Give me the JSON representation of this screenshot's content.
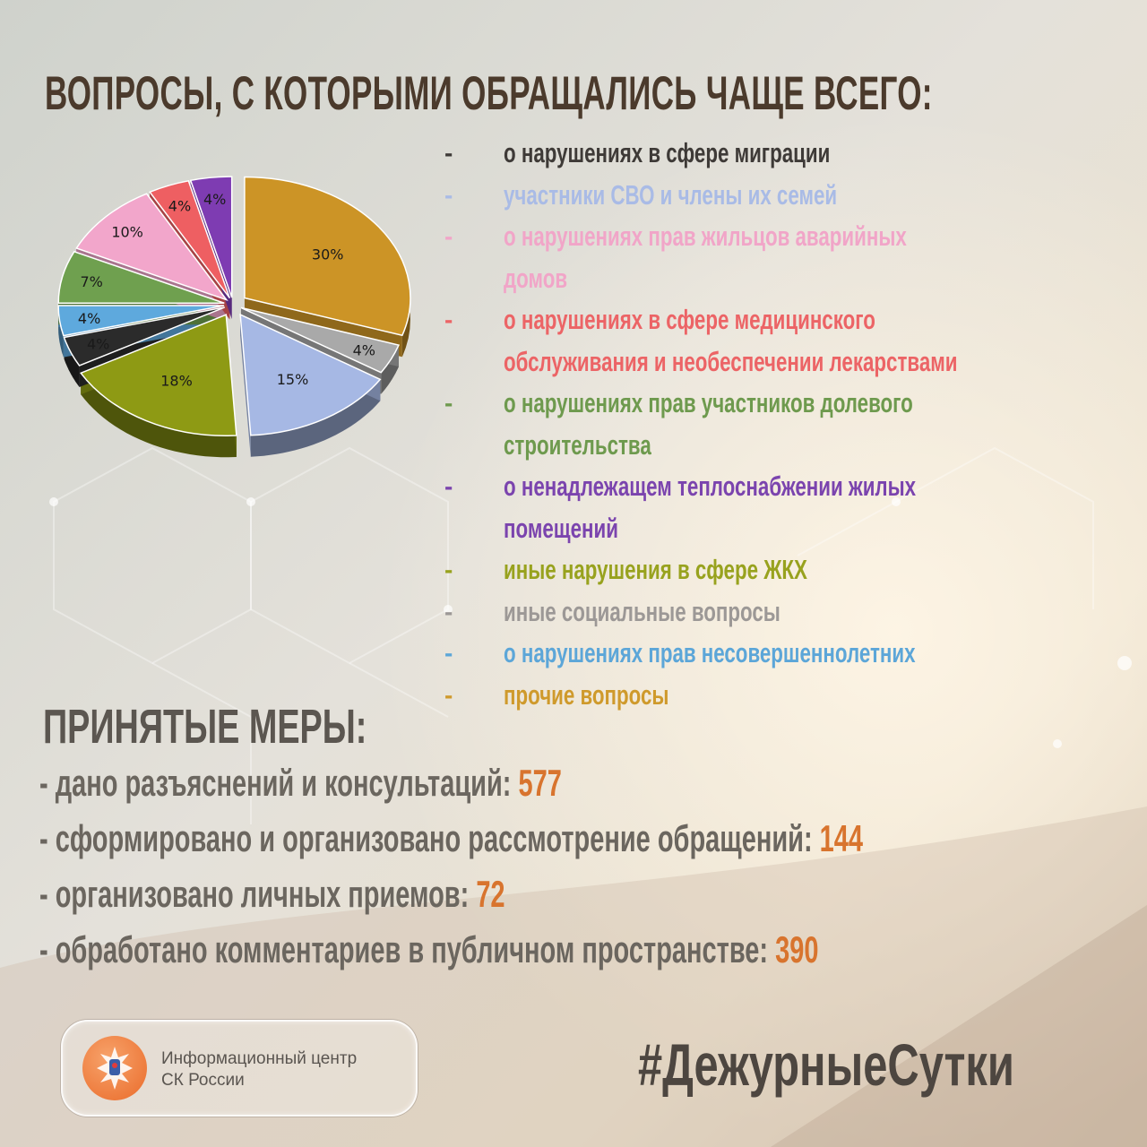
{
  "title": "ВОПРОСЫ, С КОТОРЫМИ ОБРАЩАЛИСЬ ЧАЩЕ ВСЕГО:",
  "chart_data": {
    "type": "pie",
    "slices": [
      {
        "label": "прочие вопросы",
        "value": 30,
        "text": "30%",
        "color": "#cc9426"
      },
      {
        "label": "иные социальные вопросы",
        "value": 4,
        "text": "4%",
        "color": "#a9a9a9"
      },
      {
        "label": "участники СВО и члены их семей",
        "value": 15,
        "text": "15%",
        "color": "#a6b8e4"
      },
      {
        "label": "иные нарушения в сфере ЖКХ",
        "value": 18,
        "text": "18%",
        "color": "#8e9a14"
      },
      {
        "label": "о нарушениях в сфере миграции",
        "value": 4,
        "text": "4%",
        "color": "#2b2b2b"
      },
      {
        "label": "о нарушениях прав несовершеннолетних",
        "value": 4,
        "text": "4%",
        "color": "#5ea9dd"
      },
      {
        "label": "о нарушениях прав участников долевого строительства",
        "value": 7,
        "text": "7%",
        "color": "#6fa04f"
      },
      {
        "label": "о нарушениях прав жильцов аварийных домов",
        "value": 10,
        "text": "10%",
        "color": "#f2a6cb"
      },
      {
        "label": "о нарушениях в сфере медицинского обслуживания и необеспечении лекарствами",
        "value": 4,
        "text": "4%",
        "color": "#ee5f62"
      },
      {
        "label": "о ненадлежащем теплоснабжении жилых помещений",
        "value": 4,
        "text": "4%",
        "color": "#7e3cb2"
      }
    ]
  },
  "legend": [
    {
      "dash": "-",
      "lines": [
        "о нарушениях в сфере миграции"
      ],
      "color": "#3e3a37"
    },
    {
      "dash": "-",
      "lines": [
        "участники СВО и члены их семей"
      ],
      "color": "#a9bbe6"
    },
    {
      "dash": "-",
      "lines": [
        "о нарушениях прав жильцов аварийных домов"
      ],
      "color": "#f1a5c8"
    },
    {
      "dash": "-",
      "lines": [
        "о нарушениях в сфере медицинского",
        "обслуживания и необеспечении лекарствами"
      ],
      "color": "#ec6466"
    },
    {
      "dash": "-",
      "lines": [
        "о нарушениях прав участников долевого",
        "строительства"
      ],
      "color": "#6e9a4e"
    },
    {
      "dash": "-",
      "lines": [
        "о ненадлежащем теплоснабжении жилых",
        "помещений"
      ],
      "color": "#7b44ae"
    },
    {
      "dash": "-",
      "lines": [
        "иные нарушения в сфере ЖКХ"
      ],
      "color": "#98a21e"
    },
    {
      "dash": "-",
      "lines": [
        "иные социальные вопросы"
      ],
      "color": "#9c9896"
    },
    {
      "dash": "-",
      "lines": [
        "о нарушениях прав несовершеннолетних"
      ],
      "color": "#5ca6d8"
    },
    {
      "dash": "-",
      "lines": [
        "прочие вопросы"
      ],
      "color": "#cf9a2c"
    }
  ],
  "measures_title": "ПРИНЯТЫЕ МЕРЫ:",
  "measures": [
    {
      "text": "- дано разъяснений и консультаций: ",
      "num": "577"
    },
    {
      "text": "- сформировано и организовано рассмотрение обращений: ",
      "num": "144"
    },
    {
      "text": "- организовано личных приемов: ",
      "num": "72"
    },
    {
      "text": "- обработано комментариев в публичном пространстве: ",
      "num": "390"
    }
  ],
  "logo": {
    "line1": "Информационный центр",
    "line2": "СК России"
  },
  "hashtag": "#ДежурныеСутки"
}
